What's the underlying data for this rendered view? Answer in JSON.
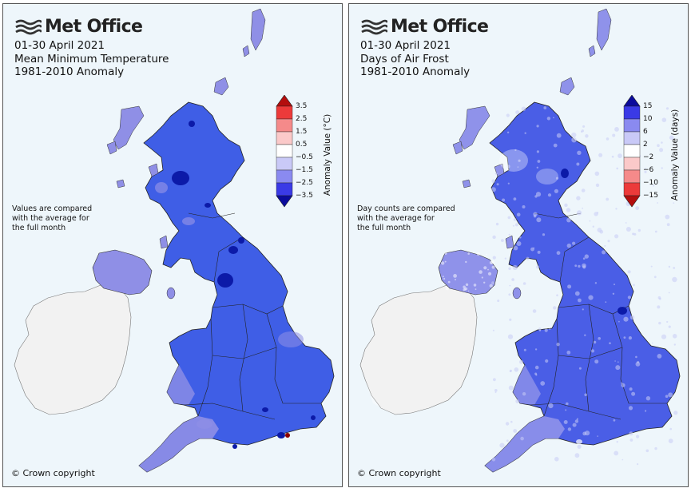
{
  "left_panel": {
    "logo_text": "Met Office",
    "title_lines": [
      "01-30 April 2021",
      "Mean Minimum Temperature",
      "1981-2010 Anomaly"
    ],
    "note_lines": [
      "Values are compared",
      "with the average for",
      "the full month"
    ],
    "copyright": "© Crown copyright",
    "legend": {
      "title": "Anomaly Value (°C)",
      "ticks": [
        "3.5",
        "2.5",
        "1.5",
        "0.5",
        "−0.5",
        "−1.5",
        "−2.5",
        "−3.5"
      ],
      "colors": [
        "#b40e0e",
        "#ec3a3a",
        "#f58a8a",
        "#fbc9c9",
        "#ffffff",
        "#c9c9f7",
        "#8a8af0",
        "#3a3ae6",
        "#0b0b9c"
      ]
    },
    "map_colors": {
      "main": "#3f5ee6",
      "light": "#8f8fe6",
      "dark": "#0c1aa8",
      "ireland": "#f2f2f2",
      "red": "#8a0000"
    }
  },
  "right_panel": {
    "logo_text": "Met Office",
    "title_lines": [
      "01-30 April 2021",
      "Days of Air Frost",
      "1981-2010 Anomaly"
    ],
    "note_lines": [
      "Day counts are compared",
      "with the average for",
      "the full month"
    ],
    "copyright": "© Crown copyright",
    "legend": {
      "title": "Anomaly Value (days)",
      "ticks": [
        "15",
        "10",
        "6",
        "2",
        "−2",
        "−6",
        "−10",
        "−15"
      ],
      "colors": [
        "#0b0b9c",
        "#3a3ae6",
        "#8a8af0",
        "#c9c9f7",
        "#ffffff",
        "#fbc9c9",
        "#f58a8a",
        "#ec3a3a",
        "#b40e0e"
      ]
    },
    "map_colors": {
      "main": "#4a5ee6",
      "light": "#8f92ea",
      "dark": "#0c1aa8",
      "ireland": "#f2f2f2",
      "speck": "#c9ccf6"
    }
  }
}
